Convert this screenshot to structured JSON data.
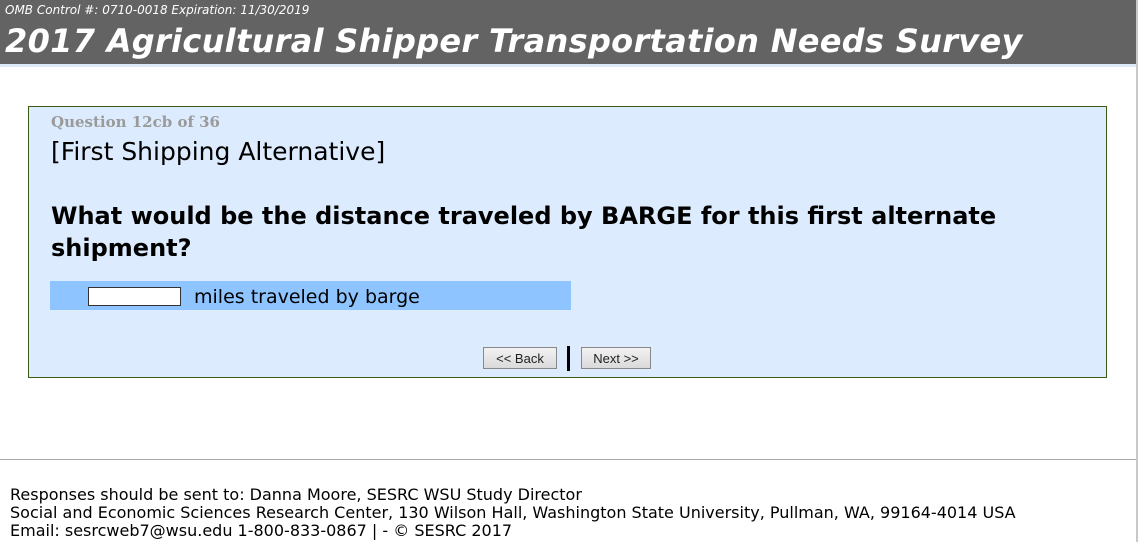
{
  "header": {
    "omb": "OMB Control #: 0710-0018 Expiration: 11/30/2019",
    "title": "2017 Agricultural Shipper Transportation Needs Survey"
  },
  "question": {
    "number": "Question 12cb of 36",
    "subtitle": "[First Shipping Alternative]",
    "text": "What would be the distance traveled by BARGE for this first alternate shipment?",
    "input_value": "",
    "input_label": "miles traveled by barge"
  },
  "nav": {
    "back": "<< Back",
    "next": "Next >>"
  },
  "footer": {
    "line1": "Responses should be sent to: Danna Moore, SESRC WSU Study Director",
    "line2": "Social and Economic Sciences Research Center, 130 Wilson Hall, Washington State University, Pullman, WA, 99164-4014 USA",
    "line3": "Email: sesrcweb7@wsu.edu 1-800-833-0867 | - © SESRC 2017"
  },
  "colors": {
    "header": "#636363",
    "question_bg": "#dcebfd",
    "answer_row": "#8ec4ff",
    "border": "#3d5a14"
  }
}
